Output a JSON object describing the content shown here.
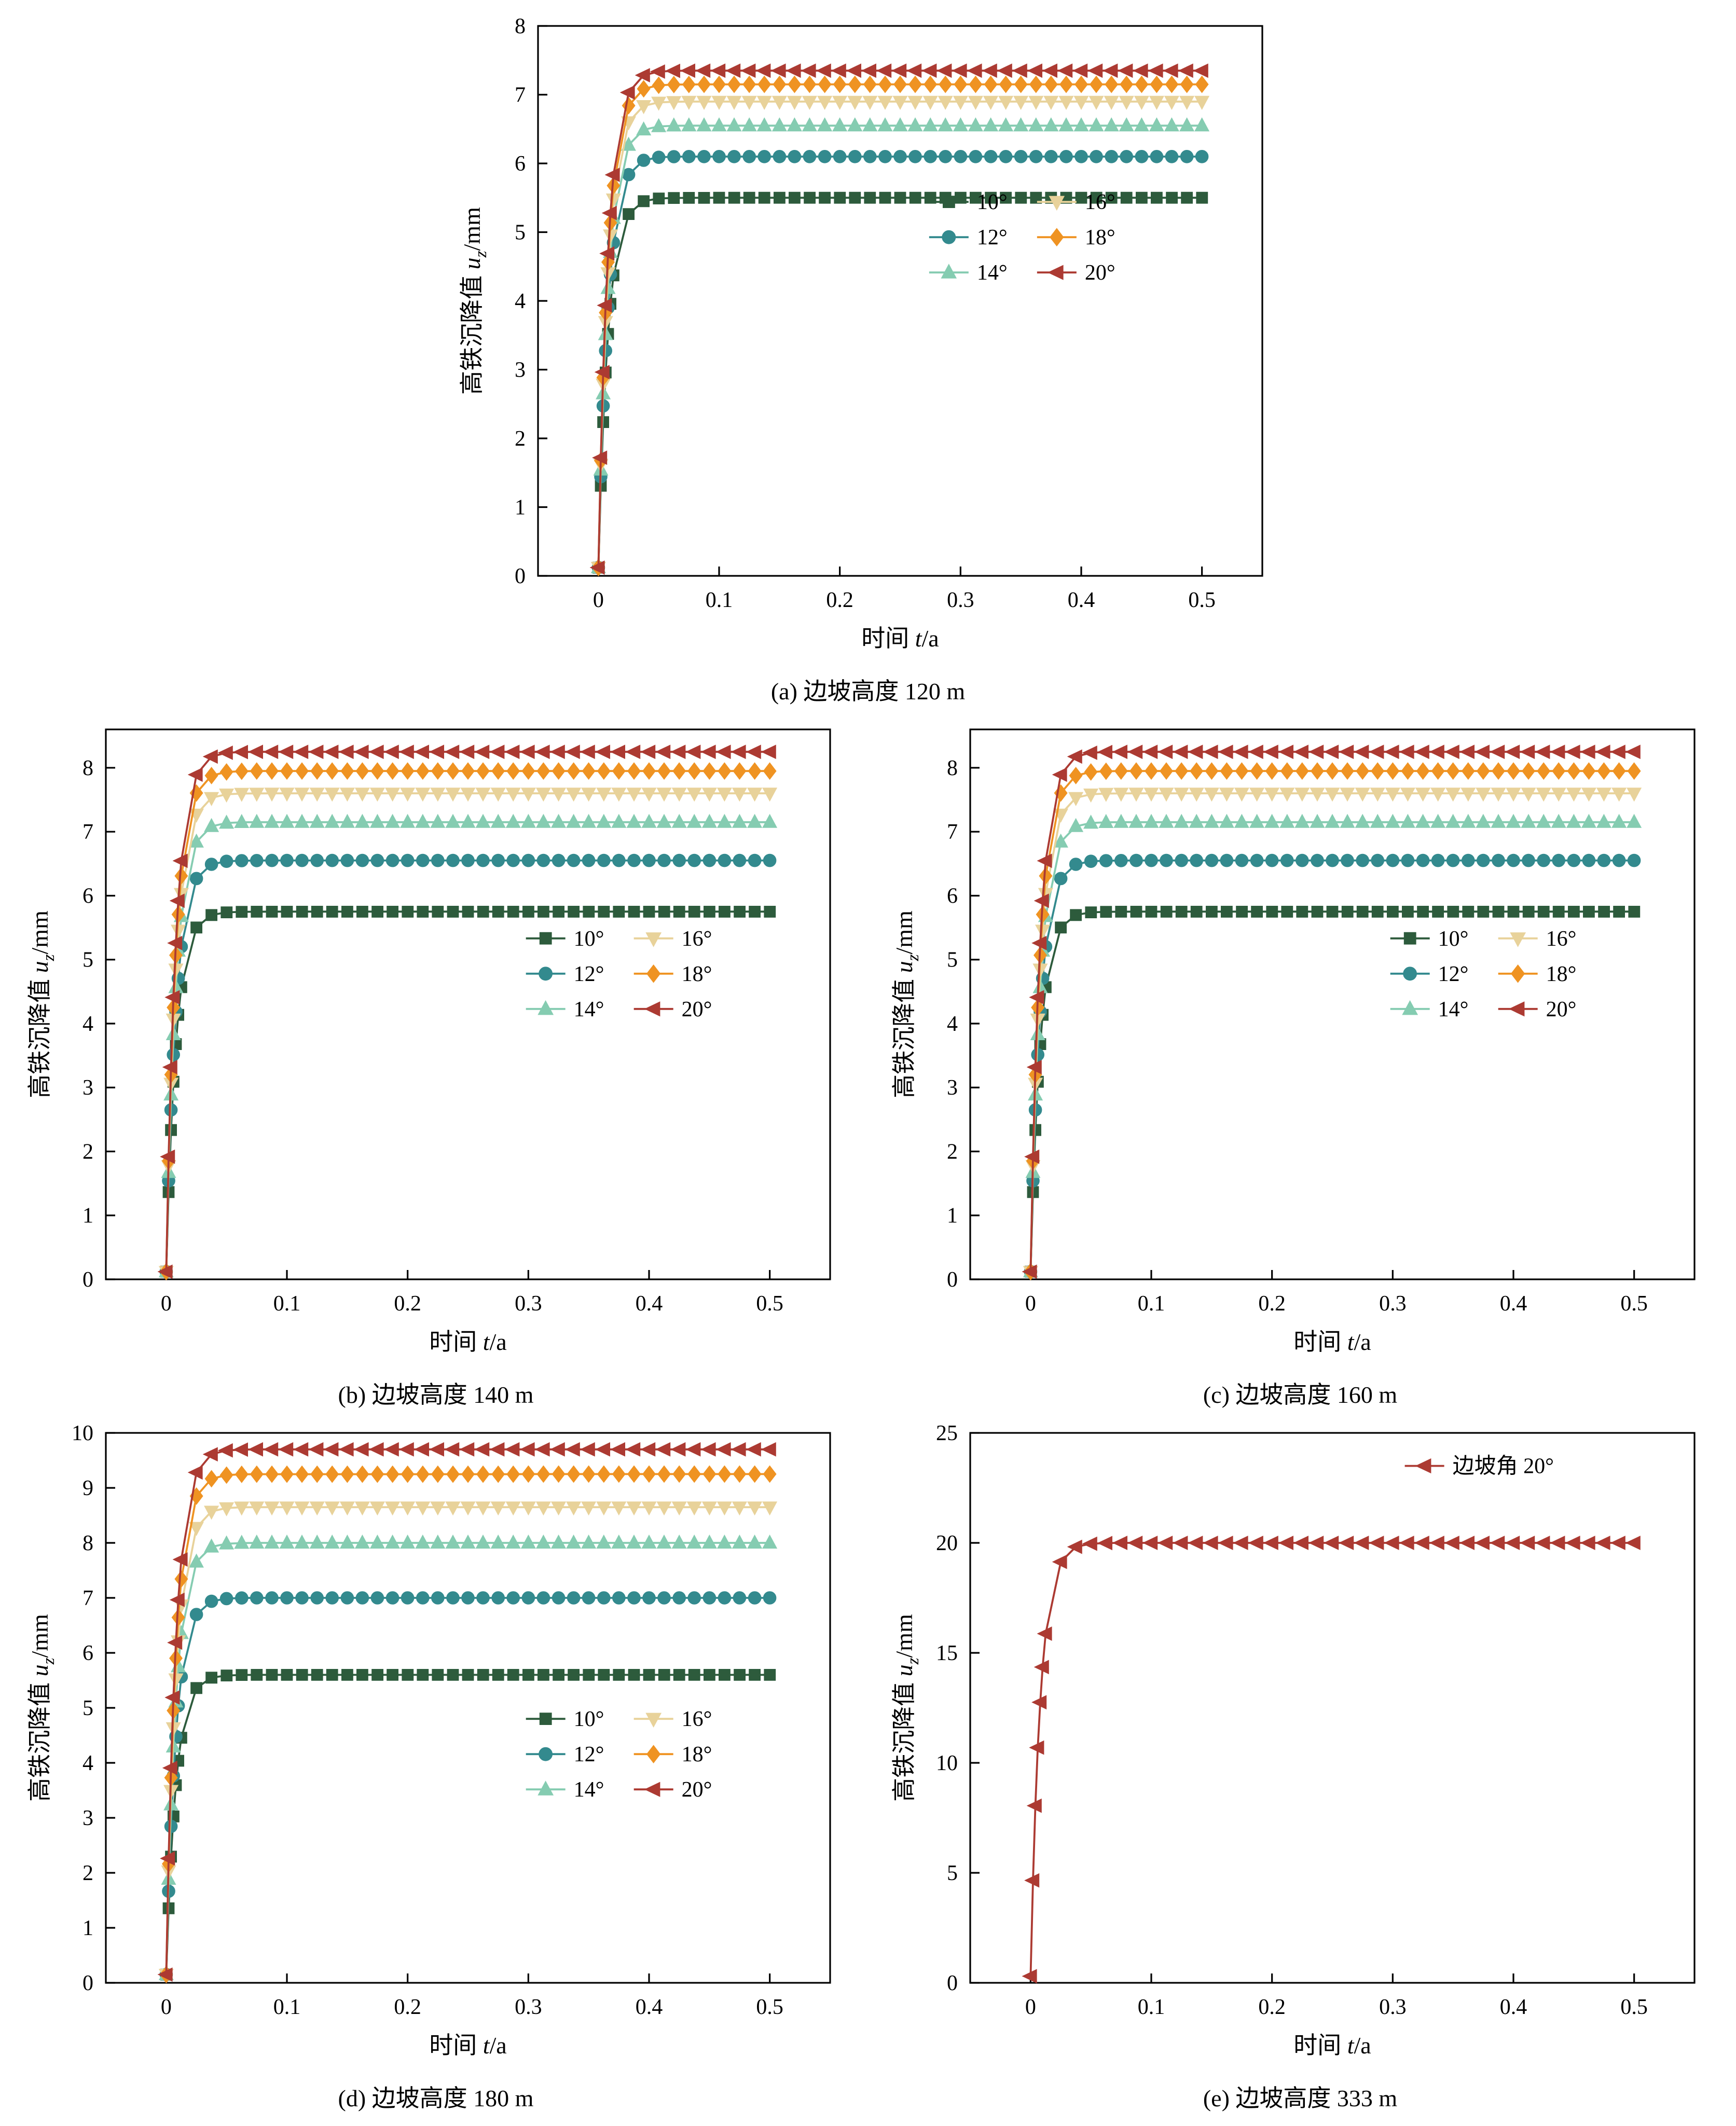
{
  "figure": {
    "background": "#ffffff",
    "axis_color": "#000000"
  },
  "chart_data": [
    {
      "id": "a",
      "type": "line",
      "caption": "(a) 边坡高度 120 m",
      "xlabel": {
        "pre": "时间 ",
        "var": "t",
        "post": "/a"
      },
      "ylabel": {
        "pre": "高铁沉降值 ",
        "var": "u",
        "sub": "z",
        "post": "/mm"
      },
      "xlim": [
        -0.05,
        0.55
      ],
      "ylim": [
        0,
        8
      ],
      "xticks": [
        0,
        0.1,
        0.2,
        0.3,
        0.4,
        0.5
      ],
      "yticks": [
        0,
        1,
        2,
        3,
        4,
        5,
        6,
        7,
        8
      ],
      "grid": false,
      "legend": {
        "x": 0.54,
        "y": 0.32,
        "cols": 2
      },
      "sampling": {
        "u0": 0.12,
        "tau": 0.008,
        "t_dense": [
          0,
          0.002,
          0.004,
          0.006,
          0.008,
          0.01
        ],
        "t_step": 0.0125,
        "t_max": 0.5
      },
      "series": [
        {
          "name": "10°",
          "marker": "square",
          "color": "#2d5b3c",
          "plateau": 5.5
        },
        {
          "name": "12°",
          "marker": "circle",
          "color": "#338a8e",
          "plateau": 6.1
        },
        {
          "name": "14°",
          "marker": "triangle-up",
          "color": "#85ccb1",
          "plateau": 6.55
        },
        {
          "name": "16°",
          "marker": "triangle-down",
          "color": "#e8d29a",
          "plateau": 6.9
        },
        {
          "name": "18°",
          "marker": "diamond",
          "color": "#ef9322",
          "plateau": 7.15
        },
        {
          "name": "20°",
          "marker": "triangle-left",
          "color": "#ac3a32",
          "plateau": 7.35
        }
      ]
    },
    {
      "id": "b",
      "type": "line",
      "caption": "(b) 边坡高度 140 m",
      "xlabel": {
        "pre": "时间 ",
        "var": "t",
        "post": "/a"
      },
      "ylabel": {
        "pre": "高铁沉降值 ",
        "var": "u",
        "sub": "z",
        "post": "/mm"
      },
      "xlim": [
        -0.05,
        0.55
      ],
      "ylim": [
        0,
        8.6
      ],
      "xticks": [
        0,
        0.1,
        0.2,
        0.3,
        0.4,
        0.5
      ],
      "yticks": [
        0,
        1,
        2,
        3,
        4,
        5,
        6,
        7,
        8
      ],
      "grid": false,
      "legend": {
        "x": 0.58,
        "y": 0.38,
        "cols": 2
      },
      "sampling": {
        "u0": 0.12,
        "tau": 0.008,
        "t_dense": [
          0,
          0.002,
          0.004,
          0.006,
          0.008,
          0.01
        ],
        "t_step": 0.0125,
        "t_max": 0.5
      },
      "series": [
        {
          "name": "10°",
          "marker": "square",
          "color": "#2d5b3c",
          "plateau": 5.75
        },
        {
          "name": "12°",
          "marker": "circle",
          "color": "#338a8e",
          "plateau": 6.55
        },
        {
          "name": "14°",
          "marker": "triangle-up",
          "color": "#85ccb1",
          "plateau": 7.15
        },
        {
          "name": "16°",
          "marker": "triangle-down",
          "color": "#e8d29a",
          "plateau": 7.6
        },
        {
          "name": "18°",
          "marker": "diamond",
          "color": "#ef9322",
          "plateau": 7.95
        },
        {
          "name": "20°",
          "marker": "triangle-left",
          "color": "#ac3a32",
          "plateau": 8.25
        }
      ]
    },
    {
      "id": "c",
      "type": "line",
      "caption": "(c) 边坡高度 160 m",
      "xlabel": {
        "pre": "时间 ",
        "var": "t",
        "post": "/a"
      },
      "ylabel": {
        "pre": "高铁沉降值 ",
        "var": "u",
        "sub": "z",
        "post": "/mm"
      },
      "xlim": [
        -0.05,
        0.55
      ],
      "ylim": [
        0,
        8.6
      ],
      "xticks": [
        0,
        0.1,
        0.2,
        0.3,
        0.4,
        0.5
      ],
      "yticks": [
        0,
        1,
        2,
        3,
        4,
        5,
        6,
        7,
        8
      ],
      "grid": false,
      "legend": {
        "x": 0.58,
        "y": 0.38,
        "cols": 2
      },
      "sampling": {
        "u0": 0.12,
        "tau": 0.008,
        "t_dense": [
          0,
          0.002,
          0.004,
          0.006,
          0.008,
          0.01
        ],
        "t_step": 0.0125,
        "t_max": 0.5
      },
      "series": [
        {
          "name": "10°",
          "marker": "square",
          "color": "#2d5b3c",
          "plateau": 5.75
        },
        {
          "name": "12°",
          "marker": "circle",
          "color": "#338a8e",
          "plateau": 6.55
        },
        {
          "name": "14°",
          "marker": "triangle-up",
          "color": "#85ccb1",
          "plateau": 7.15
        },
        {
          "name": "16°",
          "marker": "triangle-down",
          "color": "#e8d29a",
          "plateau": 7.6
        },
        {
          "name": "18°",
          "marker": "diamond",
          "color": "#ef9322",
          "plateau": 7.95
        },
        {
          "name": "20°",
          "marker": "triangle-left",
          "color": "#ac3a32",
          "plateau": 8.25
        }
      ]
    },
    {
      "id": "d",
      "type": "line",
      "caption": "(d) 边坡高度 180 m",
      "xlabel": {
        "pre": "时间 ",
        "var": "t",
        "post": "/a"
      },
      "ylabel": {
        "pre": "高铁沉降值 ",
        "var": "u",
        "sub": "z",
        "post": "/mm"
      },
      "xlim": [
        -0.05,
        0.55
      ],
      "ylim": [
        0,
        10
      ],
      "xticks": [
        0,
        0.1,
        0.2,
        0.3,
        0.4,
        0.5
      ],
      "yticks": [
        0,
        1,
        2,
        3,
        4,
        5,
        6,
        7,
        8,
        9,
        10
      ],
      "grid": false,
      "legend": {
        "x": 0.58,
        "y": 0.52,
        "cols": 2
      },
      "sampling": {
        "u0": 0.15,
        "tau": 0.008,
        "t_dense": [
          0,
          0.002,
          0.004,
          0.006,
          0.008,
          0.01
        ],
        "t_step": 0.0125,
        "t_max": 0.5
      },
      "series": [
        {
          "name": "10°",
          "marker": "square",
          "color": "#2d5b3c",
          "plateau": 5.6
        },
        {
          "name": "12°",
          "marker": "circle",
          "color": "#338a8e",
          "plateau": 7.0
        },
        {
          "name": "14°",
          "marker": "triangle-up",
          "color": "#85ccb1",
          "plateau": 8.0
        },
        {
          "name": "16°",
          "marker": "triangle-down",
          "color": "#e8d29a",
          "plateau": 8.65
        },
        {
          "name": "18°",
          "marker": "diamond",
          "color": "#ef9322",
          "plateau": 9.25
        },
        {
          "name": "20°",
          "marker": "triangle-left",
          "color": "#ac3a32",
          "plateau": 9.7
        }
      ]
    },
    {
      "id": "e",
      "type": "line",
      "caption": "(e) 边坡高度 333 m",
      "xlabel": {
        "pre": "时间 ",
        "var": "t",
        "post": "/a"
      },
      "ylabel": {
        "pre": "高铁沉降值 ",
        "var": "u",
        "sub": "z",
        "post": "/mm"
      },
      "xlim": [
        -0.05,
        0.55
      ],
      "ylim": [
        0,
        25
      ],
      "xticks": [
        0,
        0.1,
        0.2,
        0.3,
        0.4,
        0.5
      ],
      "yticks": [
        0,
        5,
        10,
        15,
        20,
        25
      ],
      "grid": false,
      "legend": {
        "x": 0.6,
        "y": 0.06,
        "cols": 1
      },
      "sampling": {
        "u0": 0.3,
        "tau": 0.008,
        "t_dense": [
          0,
          0.002,
          0.004,
          0.006,
          0.008,
          0.01
        ],
        "t_step": 0.0125,
        "t_max": 0.5
      },
      "series": [
        {
          "name": "边坡角 20°",
          "marker": "triangle-left",
          "color": "#ac3a32",
          "plateau": 20.0
        }
      ]
    }
  ]
}
